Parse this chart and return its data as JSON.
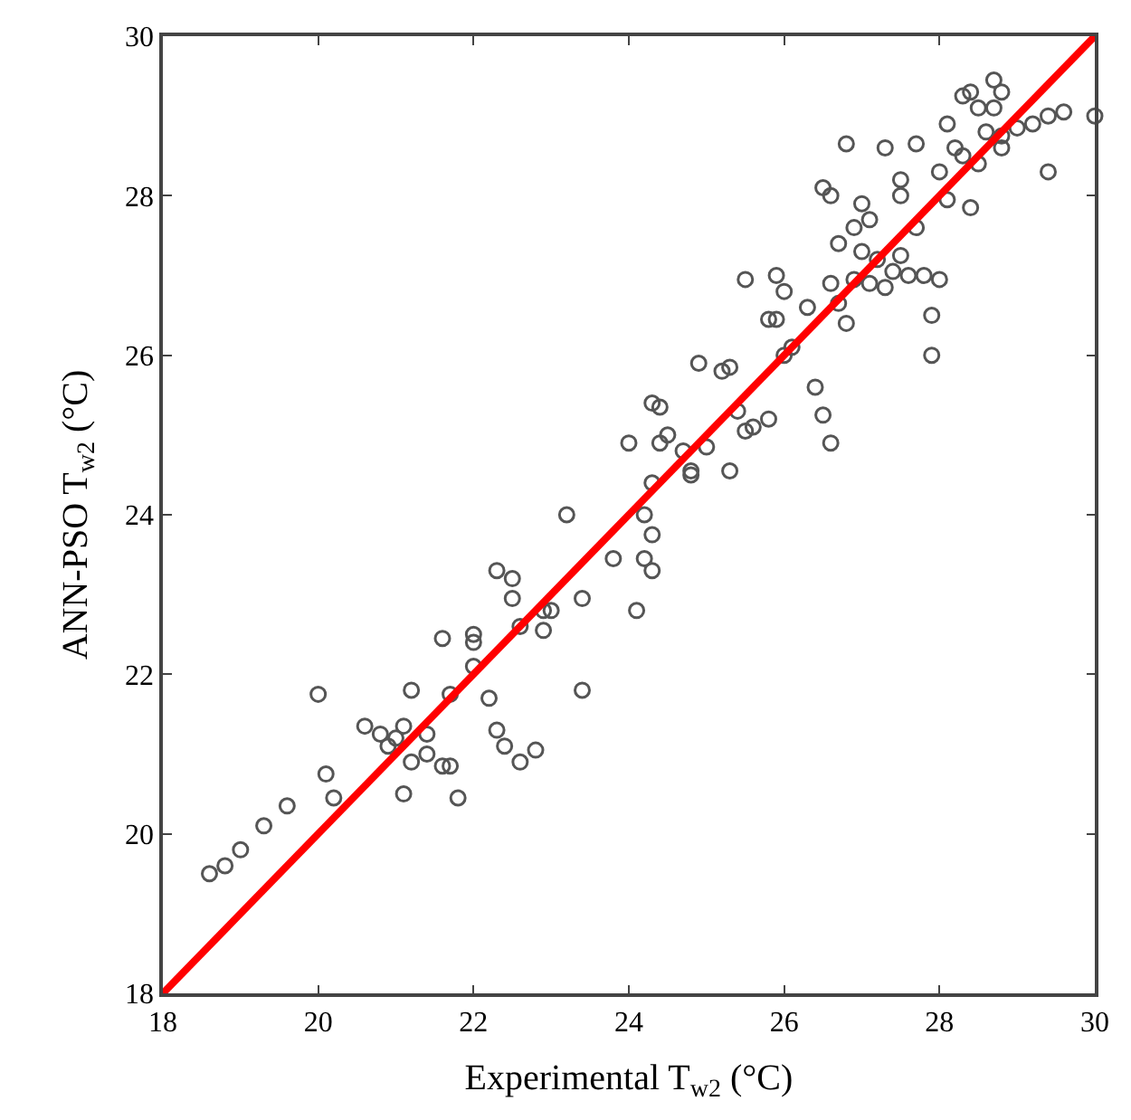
{
  "chart_data": {
    "type": "scatter",
    "xlabel": "Experimental T$_{w2}$ (°C)",
    "ylabel": "ANN-PSO T$_{w2}$ (°C)",
    "xlim": [
      18,
      30
    ],
    "ylim": [
      18,
      30
    ],
    "xticks": [
      18,
      20,
      22,
      24,
      26,
      28,
      30
    ],
    "yticks": [
      18,
      20,
      22,
      24,
      26,
      28,
      30
    ],
    "marker": "circle",
    "series": [
      {
        "color": "#555555",
        "x": [
          18.6,
          18.8,
          19.0,
          19.3,
          19.6,
          20.0,
          20.1,
          20.2,
          20.6,
          20.8,
          20.9,
          21.0,
          21.1,
          21.1,
          21.2,
          21.2,
          21.4,
          21.4,
          21.6,
          21.6,
          21.7,
          21.7,
          21.8,
          22.0,
          22.0,
          22.0,
          22.2,
          22.3,
          22.3,
          22.4,
          22.5,
          22.5,
          22.6,
          22.6,
          22.8,
          22.9,
          22.9,
          23.0,
          23.2,
          23.4,
          23.4,
          23.8,
          24.0,
          24.1,
          24.2,
          24.2,
          24.3,
          24.3,
          24.3,
          24.3,
          24.4,
          24.4,
          24.5,
          24.7,
          24.8,
          24.8,
          24.9,
          25.0,
          25.2,
          25.3,
          25.3,
          25.4,
          25.5,
          25.5,
          25.6,
          25.8,
          25.8,
          25.9,
          25.9,
          26.0,
          26.0,
          26.1,
          26.3,
          26.4,
          26.5,
          26.5,
          26.6,
          26.6,
          26.6,
          26.7,
          26.7,
          26.8,
          26.8,
          26.9,
          26.9,
          27.0,
          27.0,
          27.1,
          27.1,
          27.2,
          27.3,
          27.3,
          27.4,
          27.5,
          27.5,
          27.5,
          27.6,
          27.7,
          27.7,
          27.8,
          27.9,
          27.9,
          28.0,
          28.0,
          28.1,
          28.1,
          28.2,
          28.3,
          28.3,
          28.4,
          28.4,
          28.5,
          28.5,
          28.6,
          28.7,
          28.7,
          28.8,
          28.8,
          28.8,
          29.0,
          29.2,
          29.4,
          29.4,
          29.6,
          30.0
        ],
        "values": [
          19.5,
          19.6,
          19.8,
          20.1,
          20.35,
          21.75,
          20.75,
          20.45,
          21.35,
          21.25,
          21.1,
          21.2,
          20.5,
          21.35,
          21.8,
          20.9,
          21.0,
          21.25,
          22.45,
          20.85,
          20.85,
          21.75,
          20.45,
          22.4,
          22.5,
          22.1,
          21.7,
          21.3,
          23.3,
          21.1,
          23.2,
          22.95,
          20.9,
          22.6,
          21.05,
          22.8,
          22.55,
          22.8,
          24.0,
          21.8,
          22.95,
          23.45,
          24.9,
          22.8,
          23.45,
          24.0,
          23.3,
          23.75,
          24.4,
          25.4,
          24.9,
          25.35,
          25.0,
          24.8,
          24.5,
          24.55,
          25.9,
          24.85,
          25.8,
          24.55,
          25.85,
          25.3,
          25.05,
          26.95,
          25.1,
          25.2,
          26.45,
          26.45,
          27.0,
          26.8,
          26.0,
          26.1,
          26.6,
          25.6,
          28.1,
          25.25,
          24.9,
          28.0,
          26.9,
          27.4,
          26.65,
          28.65,
          26.4,
          26.95,
          27.6,
          27.9,
          27.3,
          27.7,
          26.9,
          27.2,
          28.6,
          26.85,
          27.05,
          28.0,
          28.2,
          27.25,
          27.0,
          28.65,
          27.6,
          27.0,
          26.0,
          26.5,
          26.95,
          28.3,
          27.95,
          28.9,
          28.6,
          29.25,
          28.5,
          29.3,
          27.85,
          29.1,
          28.4,
          28.8,
          29.45,
          29.1,
          28.6,
          29.3,
          28.75,
          28.85,
          28.9,
          28.3,
          29.0,
          29.05,
          29.0
        ]
      },
      {
        "type": "line",
        "color": "#ff0000",
        "x": [
          18,
          30
        ],
        "values": [
          18,
          30
        ],
        "marker": "none",
        "line_style": "solid"
      }
    ]
  }
}
